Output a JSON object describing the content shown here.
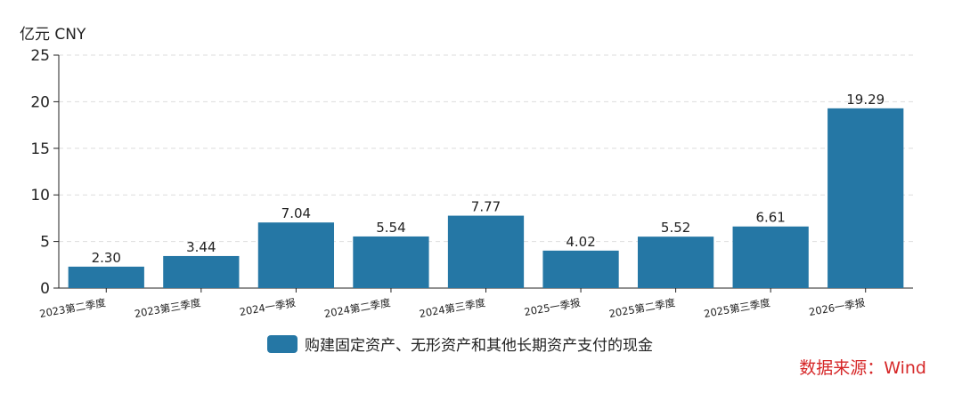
{
  "chart_data": {
    "type": "bar",
    "unit_label": "亿元  CNY",
    "categories": [
      "2023第二季度",
      "2023第三季度",
      "2024一季报",
      "2024第二季度",
      "2024第三季度",
      "2025一季报",
      "2025第二季度",
      "2025第三季度",
      "2026一季报"
    ],
    "series": [
      {
        "name": "购建固定资产、无形资产和其他长期资产支付的现金",
        "values": [
          2.3,
          3.44,
          7.04,
          5.54,
          7.77,
          4.02,
          5.52,
          6.61,
          19.29
        ]
      }
    ],
    "value_labels": [
      "2.30",
      "3.44",
      "7.04",
      "5.54",
      "7.77",
      "4.02",
      "5.52",
      "6.61",
      "19.29"
    ],
    "ylim": [
      0,
      25
    ],
    "yticks": [
      0,
      5,
      10,
      15,
      20,
      25
    ],
    "grid": true,
    "legend_position": "bottom",
    "colors": {
      "bar": "#2577a5",
      "grid": "#dddddd",
      "source": "#d62728"
    },
    "source": "数据来源：Wind"
  }
}
